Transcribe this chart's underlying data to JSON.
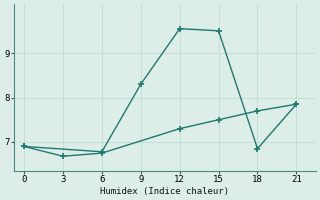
{
  "xlabel": "Humidex (Indice chaleur)",
  "background_color": "#ddeee9",
  "grid_color": "#c0ddd8",
  "line_color": "#1e7a6e",
  "line1_x": [
    0,
    6,
    9,
    12,
    15,
    18,
    21
  ],
  "line1_y": [
    6.9,
    6.78,
    8.3,
    9.55,
    9.5,
    6.85,
    7.85
  ],
  "line2_x": [
    0,
    3,
    6,
    12,
    15,
    18,
    21
  ],
  "line2_y": [
    6.9,
    6.68,
    6.75,
    7.3,
    7.5,
    7.7,
    7.85
  ],
  "xlim": [
    -0.8,
    22.5
  ],
  "ylim": [
    6.35,
    10.1
  ],
  "xticks": [
    0,
    3,
    6,
    9,
    12,
    15,
    18,
    21
  ],
  "yticks": [
    7,
    8,
    9
  ],
  "marker": "+",
  "markersize": 4,
  "linewidth": 1.0
}
